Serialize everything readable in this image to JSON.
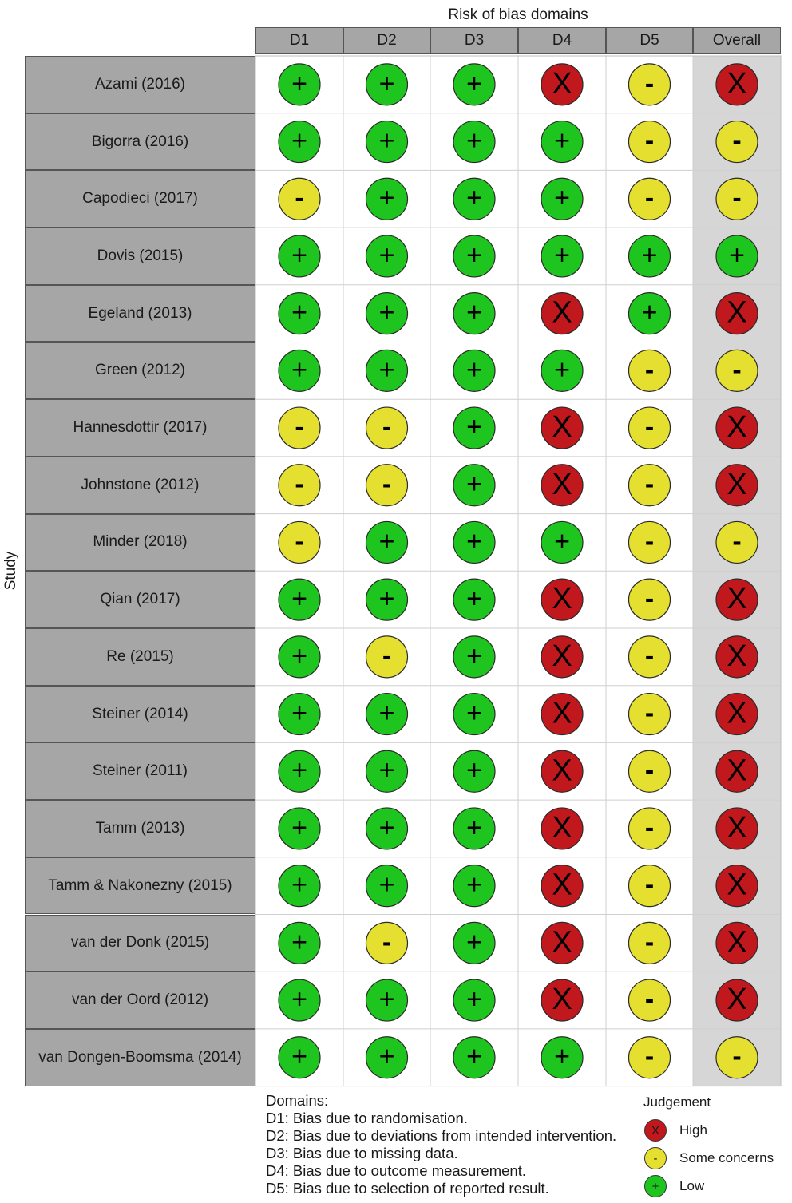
{
  "chart_data": {
    "type": "table",
    "title": "Risk of bias domains",
    "ylabel": "Study",
    "columns": [
      "D1",
      "D2",
      "D3",
      "D4",
      "D5",
      "Overall"
    ],
    "rows": [
      {
        "study": "Azami (2016)",
        "values": [
          "low",
          "low",
          "low",
          "high",
          "some",
          "high"
        ]
      },
      {
        "study": "Bigorra (2016)",
        "values": [
          "low",
          "low",
          "low",
          "low",
          "some",
          "some"
        ]
      },
      {
        "study": "Capodieci (2017)",
        "values": [
          "some",
          "low",
          "low",
          "low",
          "some",
          "some"
        ]
      },
      {
        "study": "Dovis (2015)",
        "values": [
          "low",
          "low",
          "low",
          "low",
          "low",
          "low"
        ]
      },
      {
        "study": "Egeland (2013)",
        "values": [
          "low",
          "low",
          "low",
          "high",
          "low",
          "high"
        ]
      },
      {
        "study": "Green (2012)",
        "values": [
          "low",
          "low",
          "low",
          "low",
          "some",
          "some"
        ]
      },
      {
        "study": "Hannesdottir (2017)",
        "values": [
          "some",
          "some",
          "low",
          "high",
          "some",
          "high"
        ]
      },
      {
        "study": "Johnstone (2012)",
        "values": [
          "some",
          "some",
          "low",
          "high",
          "some",
          "high"
        ]
      },
      {
        "study": "Minder (2018)",
        "values": [
          "some",
          "low",
          "low",
          "low",
          "some",
          "some"
        ]
      },
      {
        "study": "Qian (2017)",
        "values": [
          "low",
          "low",
          "low",
          "high",
          "some",
          "high"
        ]
      },
      {
        "study": "Re (2015)",
        "values": [
          "low",
          "some",
          "low",
          "high",
          "some",
          "high"
        ]
      },
      {
        "study": "Steiner (2014)",
        "values": [
          "low",
          "low",
          "low",
          "high",
          "some",
          "high"
        ]
      },
      {
        "study": "Steiner (2011)",
        "values": [
          "low",
          "low",
          "low",
          "high",
          "some",
          "high"
        ]
      },
      {
        "study": "Tamm (2013)",
        "values": [
          "low",
          "low",
          "low",
          "high",
          "some",
          "high"
        ]
      },
      {
        "study": "Tamm & Nakonezny (2015)",
        "values": [
          "low",
          "low",
          "low",
          "high",
          "some",
          "high"
        ]
      },
      {
        "study": "van der Donk (2015)",
        "values": [
          "low",
          "some",
          "low",
          "high",
          "some",
          "high"
        ]
      },
      {
        "study": "van der Oord (2012)",
        "values": [
          "low",
          "low",
          "low",
          "high",
          "some",
          "high"
        ]
      },
      {
        "study": "van Dongen-Boomsma (2014)",
        "values": [
          "low",
          "low",
          "low",
          "low",
          "some",
          "some"
        ]
      }
    ],
    "judgements": {
      "high": {
        "symbol": "X",
        "color": "#c0181c",
        "label": "High"
      },
      "some": {
        "symbol": "-",
        "color": "#e5e030",
        "label": "Some concerns"
      },
      "low": {
        "symbol": "+",
        "color": "#1fc51f",
        "label": "Low"
      }
    },
    "legend_position": "bottom-right"
  },
  "domains_legend": {
    "title": "Domains:",
    "items": [
      "D1: Bias due to randomisation.",
      "D2: Bias due to deviations from intended intervention.",
      "D3: Bias due to missing data.",
      "D4: Bias due to outcome measurement.",
      "D5: Bias due to selection of reported result."
    ]
  },
  "judgement_legend": {
    "title": "Judgement"
  }
}
